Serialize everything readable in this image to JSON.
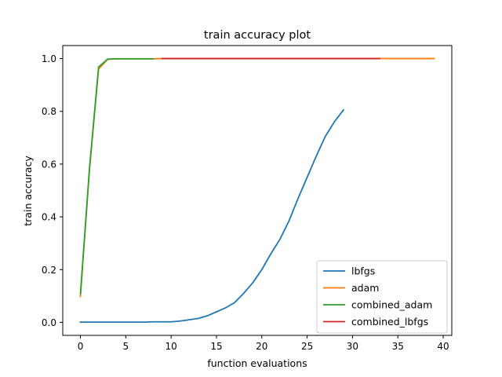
{
  "chart_data": {
    "type": "line",
    "title": "train accuracy plot",
    "xlabel": "function evaluations",
    "ylabel": "train accuracy",
    "xlim": [
      -1.95,
      40.95
    ],
    "ylim": [
      -0.0493,
      1.0493
    ],
    "x_ticks": [
      0,
      5,
      10,
      15,
      20,
      25,
      30,
      35,
      40
    ],
    "y_ticks": [
      0.0,
      0.2,
      0.4,
      0.6,
      0.8,
      1.0
    ],
    "x_tick_labels": [
      "0",
      "5",
      "10",
      "15",
      "20",
      "25",
      "30",
      "35",
      "40"
    ],
    "y_tick_labels": [
      "0.0",
      "0.2",
      "0.4",
      "0.6",
      "0.8",
      "1.0"
    ],
    "grid": false,
    "legend_position": "lower-right",
    "series": [
      {
        "name": "lbfgs",
        "color": "#1f77b4",
        "x": [
          0,
          1,
          2,
          3,
          4,
          5,
          6,
          7,
          8,
          9,
          10,
          11,
          12,
          13,
          14,
          15,
          16,
          17,
          18,
          19,
          20,
          21,
          22,
          23,
          24,
          25,
          26,
          27,
          28,
          29
        ],
        "y": [
          0.001,
          0.001,
          0.001,
          0.001,
          0.001,
          0.001,
          0.001,
          0.001,
          0.002,
          0.002,
          0.002,
          0.005,
          0.01,
          0.015,
          0.025,
          0.04,
          0.055,
          0.075,
          0.11,
          0.15,
          0.2,
          0.26,
          0.315,
          0.385,
          0.47,
          0.55,
          0.63,
          0.705,
          0.76,
          0.805
        ]
      },
      {
        "name": "adam",
        "color": "#ff7f0e",
        "x": [
          0,
          1,
          2,
          3,
          4,
          5,
          6,
          7,
          8,
          9,
          10,
          11,
          12,
          13,
          14,
          15,
          16,
          17,
          18,
          19,
          20,
          21,
          22,
          23,
          24,
          25,
          26,
          27,
          28,
          29,
          30,
          31,
          32,
          33,
          34,
          35,
          36,
          37,
          38,
          39
        ],
        "y": [
          0.098,
          0.58,
          0.96,
          0.997,
          0.999,
          0.999,
          0.999,
          0.999,
          0.999,
          1.0,
          1.0,
          1.0,
          1.0,
          1.0,
          1.0,
          1.0,
          1.0,
          1.0,
          1.0,
          1.0,
          1.0,
          1.0,
          1.0,
          1.0,
          1.0,
          1.0,
          1.0,
          1.0,
          1.0,
          1.0,
          1.0,
          1.0,
          1.0,
          1.0,
          1.0,
          1.0,
          1.0,
          1.0,
          1.0,
          1.0
        ]
      },
      {
        "name": "combined_adam",
        "color": "#2ca02c",
        "x": [
          0,
          1,
          2,
          3,
          4,
          5,
          6,
          7,
          8
        ],
        "y": [
          0.108,
          0.585,
          0.968,
          0.998,
          0.999,
          0.999,
          0.999,
          0.999,
          0.999
        ]
      },
      {
        "name": "combined_lbfgs",
        "color": "#d62728",
        "x": [
          9,
          10,
          11,
          12,
          13,
          14,
          15,
          16,
          17,
          18,
          19,
          20,
          21,
          22,
          23,
          24,
          25,
          26,
          27,
          28,
          29,
          30,
          31,
          32,
          33
        ],
        "y": [
          1.0,
          1.0,
          1.0,
          1.0,
          1.0,
          1.0,
          1.0,
          1.0,
          1.0,
          1.0,
          1.0,
          1.0,
          1.0,
          1.0,
          1.0,
          1.0,
          1.0,
          1.0,
          1.0,
          1.0,
          1.0,
          1.0,
          1.0,
          1.0,
          1.0
        ]
      }
    ]
  }
}
